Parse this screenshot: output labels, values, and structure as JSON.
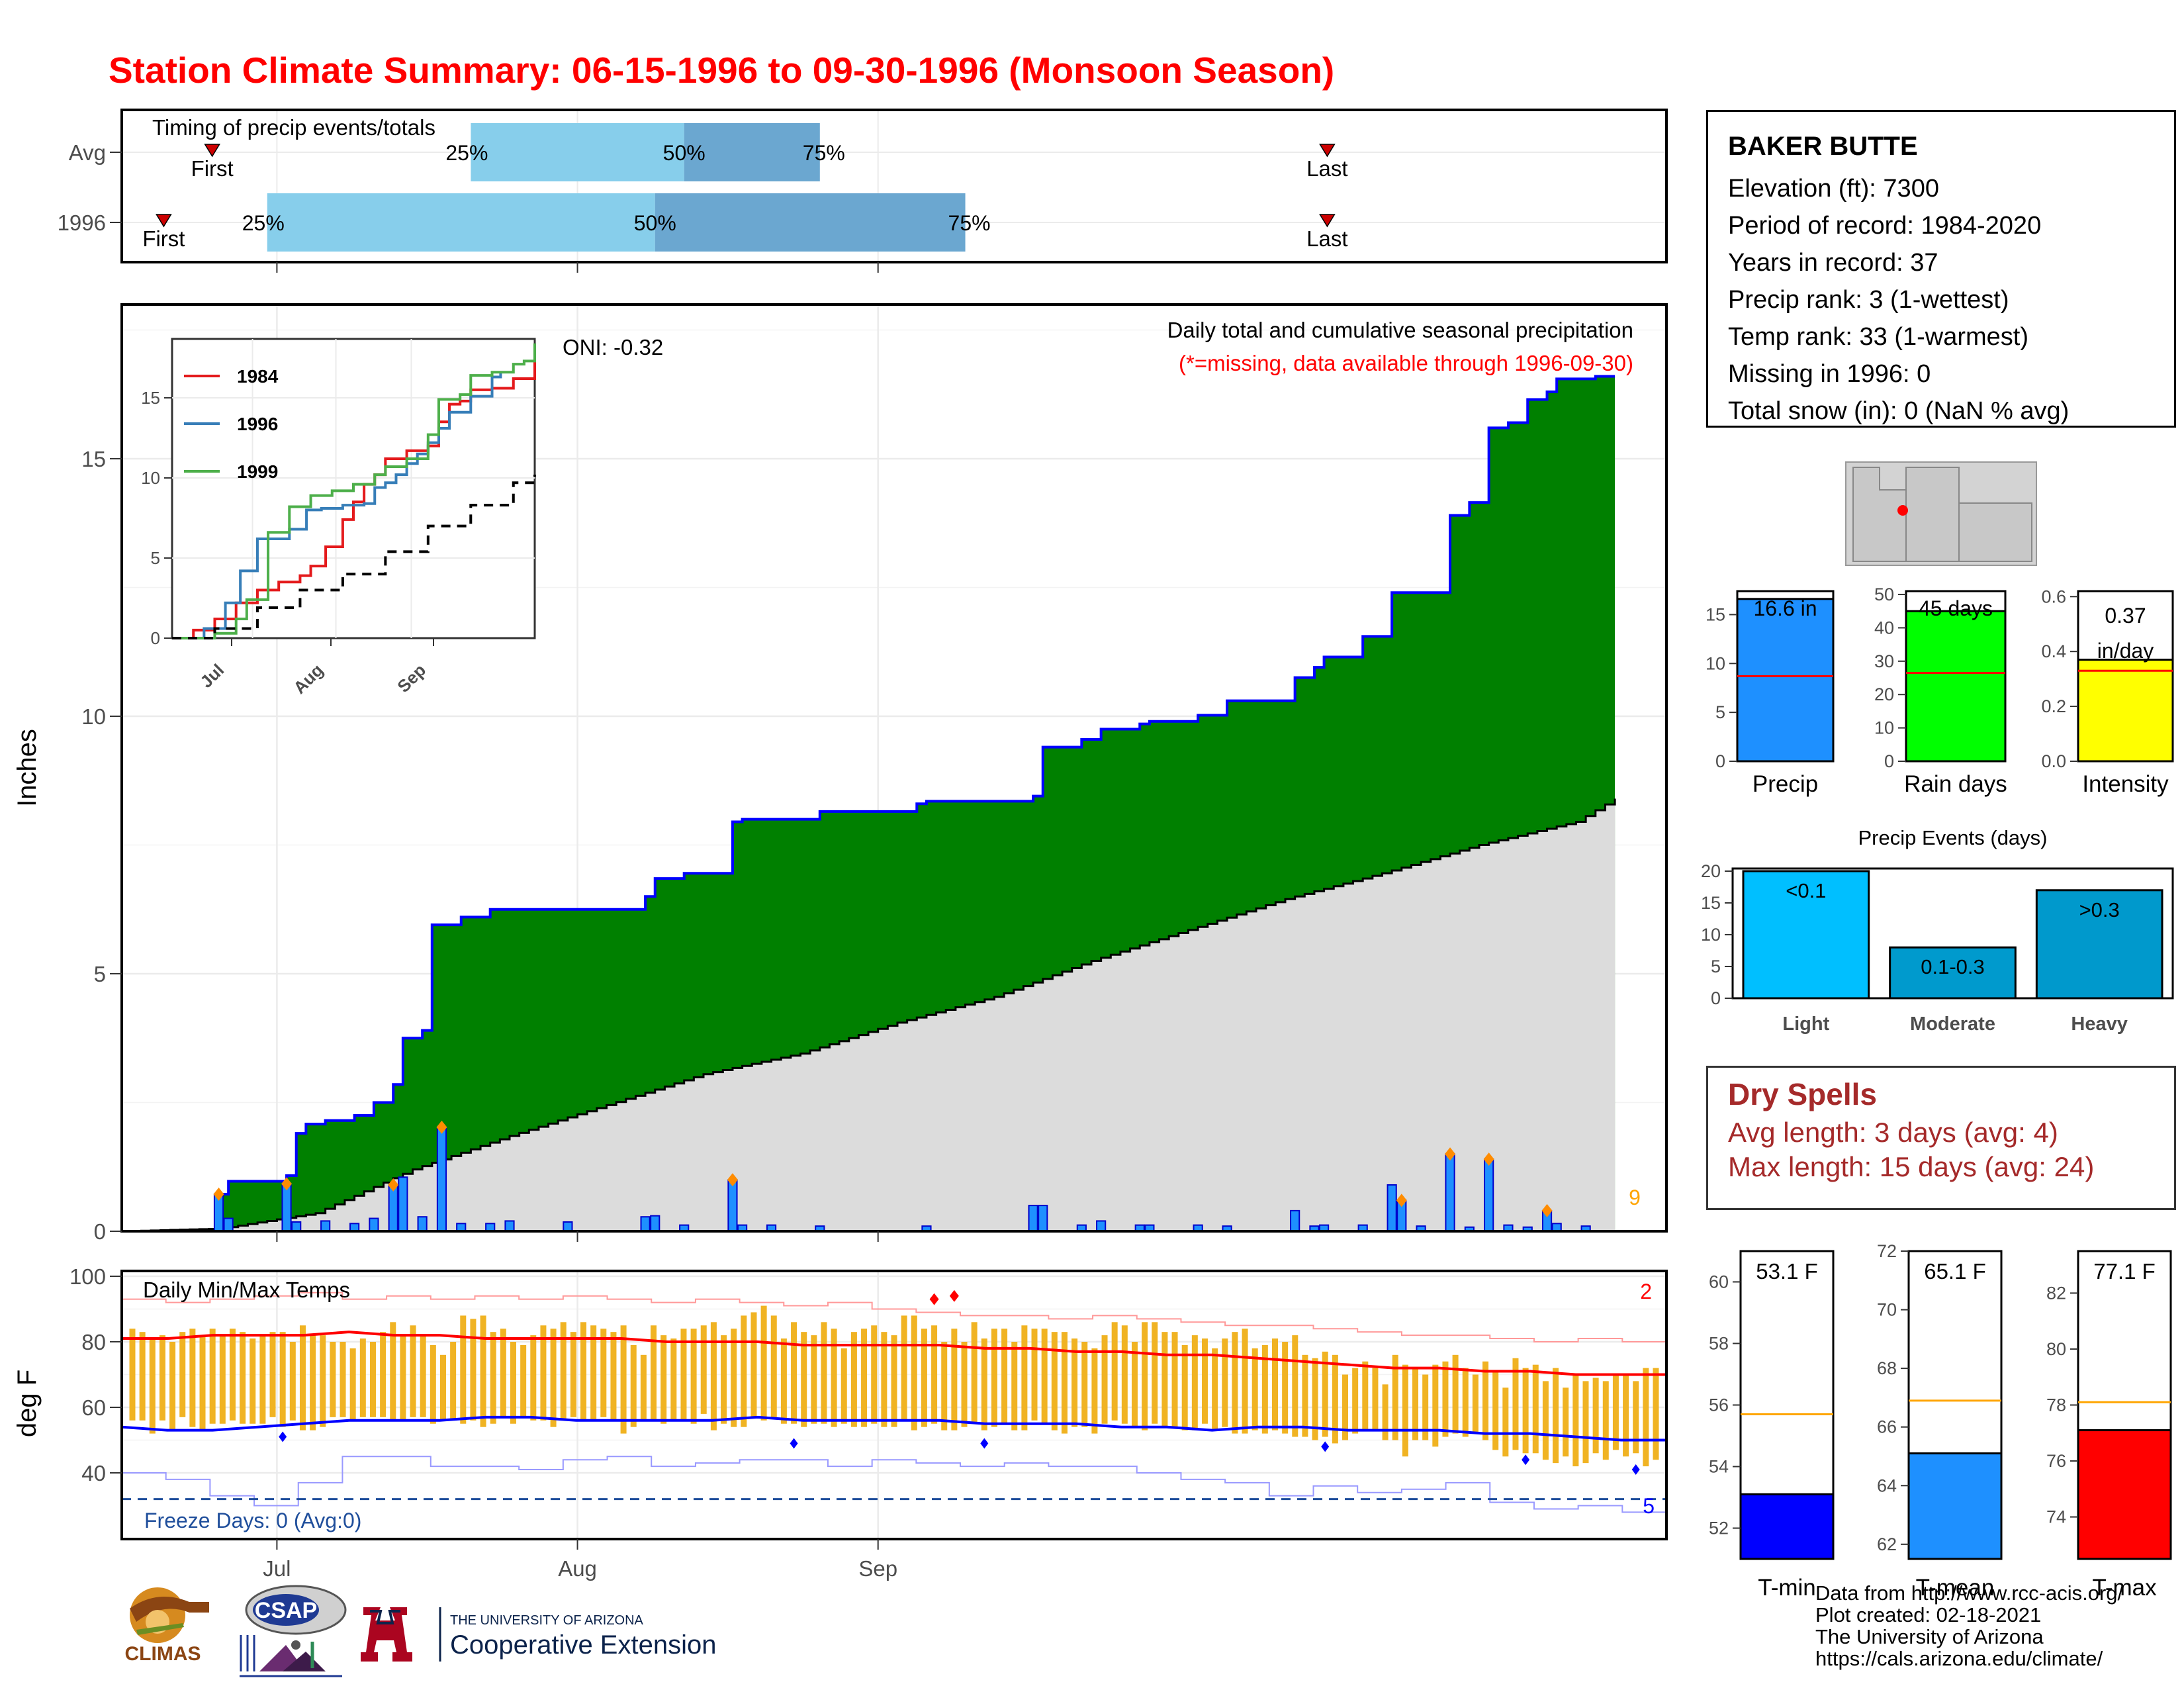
{
  "title": "Station Climate Summary: 06-15-1996 to 09-30-1996 (Monsoon Season)",
  "timing_panel": {
    "label": "Timing of precip events/totals",
    "rows": [
      {
        "label": "Avg",
        "first_day": 1,
        "q25_day": 36,
        "q50_day": 58,
        "q75_day": 72,
        "last_day": 116,
        "pct_labels": [
          "25%",
          "50%",
          "75%"
        ],
        "first_label": "First",
        "last_label": "Last"
      },
      {
        "label": "1996",
        "first_day": -4,
        "q25_day": 15,
        "q50_day": 55,
        "q75_day": 87,
        "last_day": 116,
        "pct_labels": [
          "25%",
          "50%",
          "75%"
        ],
        "first_label": "First",
        "last_label": "Last"
      }
    ]
  },
  "precip_panel": {
    "ylabel": "Inches",
    "oni": "ONI: -0.32",
    "subtitle": "Daily total and cumulative seasonal precipitation",
    "missing_note": "(*=missing, data available through 1996-09-30)",
    "missing_count": "9",
    "x_ticks": [
      "Jul",
      "Aug",
      "Sep"
    ],
    "y_ticks": [
      "0",
      "5",
      "10",
      "15"
    ],
    "colors": {
      "cumulative_fill": "#008000",
      "cumulative_line": "#0000ff",
      "normal_fill": "#dcdcdc",
      "daily_bar": "#1e90ff",
      "marker": "#ff8c00"
    }
  },
  "inset": {
    "series": [
      {
        "name": "1984",
        "color": "#e41a1c"
      },
      {
        "name": "1996",
        "color": "#377eb8"
      },
      {
        "name": "1999",
        "color": "#4daf4a"
      }
    ],
    "x_ticks": [
      "Jul",
      "Aug",
      "Sep"
    ],
    "y_ticks": [
      "0",
      "5",
      "10",
      "15"
    ]
  },
  "temp_panel": {
    "ylabel": "deg F",
    "label": "Daily Min/Max Temps",
    "freeze": "Freeze Days: 0 (Avg:0)",
    "record_high_count": "2",
    "record_low_count": "5",
    "y_ticks": [
      "40",
      "60",
      "80",
      "100"
    ],
    "x_ticks": [
      "Jul",
      "Aug",
      "Sep"
    ]
  },
  "station": {
    "name": "BAKER BUTTE",
    "lines": [
      "Elevation (ft): 7300",
      "Period of record: 1984-2020",
      "Years in record: 37",
      "Precip rank: 3 (1-wettest)",
      "Temp rank: 33 (1-warmest)",
      "Missing in 1996: 0",
      "Total snow (in): 0 (NaN % avg)"
    ]
  },
  "summary_bars": [
    {
      "label": "Precip",
      "value": 16.6,
      "value_label": "16.6 in",
      "avg": 8.7,
      "max": 17.4,
      "color": "#1e90ff",
      "ticks": [
        "0",
        "5",
        "10",
        "15"
      ]
    },
    {
      "label": "Rain days",
      "value": 45,
      "value_label": "45 days",
      "avg": 26.5,
      "max": 51,
      "color": "#00ff00",
      "ticks": [
        "0",
        "10",
        "20",
        "30",
        "40",
        "50"
      ]
    },
    {
      "label": "Intensity",
      "value": 0.37,
      "value_label": "0.37 in/day",
      "value_label_a": "0.37",
      "value_label_b": "in/day",
      "avg": 0.33,
      "max": 0.62,
      "color": "#ffff00",
      "ticks": [
        "0.0",
        "0.2",
        "0.4",
        "0.6"
      ]
    }
  ],
  "precip_events": {
    "title": "Precip Events (days)",
    "categories": [
      "Light",
      "Moderate",
      "Heavy"
    ],
    "values": [
      20,
      8,
      17
    ],
    "labels": [
      "<0.1",
      "0.1-0.3",
      ">0.3"
    ],
    "colors": [
      "#00bfff",
      "#009acd",
      "#0099cc"
    ],
    "ticks": [
      "0",
      "5",
      "10",
      "15",
      "20"
    ]
  },
  "dry_spells": {
    "title": "Dry Spells",
    "avg_length": "Avg length: 3 days (avg: 4)",
    "max_length": "Max length: 15 days (avg: 24)"
  },
  "temp_bars": [
    {
      "label": "T-min",
      "value": 53.1,
      "value_label": "53.1 F",
      "avg": 55.7,
      "ymin": 51,
      "ymax": 61,
      "color": "#0000ff",
      "ticks": [
        "52",
        "54",
        "56",
        "58",
        "60"
      ]
    },
    {
      "label": "T-mean",
      "value": 65.1,
      "value_label": "65.1 F",
      "avg": 66.9,
      "ymin": 61.5,
      "ymax": 72,
      "color": "#1e90ff",
      "ticks": [
        "62",
        "64",
        "66",
        "68",
        "70",
        "72"
      ]
    },
    {
      "label": "T-max",
      "value": 77.1,
      "value_label": "77.1 F",
      "avg": 78.1,
      "ymin": 72.5,
      "ymax": 83.5,
      "color": "#ff0000",
      "ticks": [
        "74",
        "76",
        "78",
        "80",
        "82"
      ]
    }
  ],
  "credits": [
    "Data from http://www.rcc-acis.org/",
    "Plot created: 02-18-2021",
    "The University of Arizona",
    "https://cals.arizona.edu/climate/"
  ],
  "logos": {
    "climas": "CLIMAS",
    "csap": "CSAP",
    "ua_small": "THE UNIVERSITY OF ARIZONA",
    "ua_big": "Cooperative Extension"
  },
  "chart_data": [
    {
      "type": "area",
      "title": "Daily total and cumulative seasonal precipitation",
      "ylabel": "Inches",
      "xlabel": "",
      "ylim": [
        0,
        18
      ],
      "x_start": "1996-06-15",
      "x_end": "1996-09-30",
      "daily_precip": [
        [
          10,
          0.72
        ],
        [
          11,
          0.25
        ],
        [
          17,
          0.92
        ],
        [
          18,
          0.18
        ],
        [
          21,
          0.2
        ],
        [
          24,
          0.15
        ],
        [
          26,
          0.25
        ],
        [
          28,
          0.9
        ],
        [
          29,
          1.05
        ],
        [
          31,
          0.28
        ],
        [
          33,
          2.02
        ],
        [
          35,
          0.15
        ],
        [
          38,
          0.15
        ],
        [
          40,
          0.2
        ],
        [
          46,
          0.18
        ],
        [
          54,
          0.28
        ],
        [
          55,
          0.3
        ],
        [
          58,
          0.12
        ],
        [
          63,
          1.0
        ],
        [
          64,
          0.12
        ],
        [
          67,
          0.12
        ],
        [
          72,
          0.1
        ],
        [
          83,
          0.1
        ],
        [
          94,
          0.5
        ],
        [
          95,
          0.5
        ],
        [
          99,
          0.12
        ],
        [
          101,
          0.2
        ],
        [
          105,
          0.12
        ],
        [
          106,
          0.12
        ],
        [
          111,
          0.12
        ],
        [
          114,
          0.1
        ],
        [
          121,
          0.4
        ],
        [
          123,
          0.1
        ],
        [
          124,
          0.12
        ],
        [
          128,
          0.12
        ],
        [
          131,
          0.9
        ],
        [
          132,
          0.6
        ],
        [
          134,
          0.1
        ],
        [
          137,
          1.5
        ],
        [
          139,
          0.08
        ],
        [
          141,
          1.4
        ],
        [
          143,
          0.12
        ],
        [
          145,
          0.08
        ],
        [
          147,
          0.4
        ],
        [
          148,
          0.15
        ],
        [
          151,
          0.1
        ]
      ],
      "cumulative_precip": [
        [
          0,
          0
        ],
        [
          9,
          0
        ],
        [
          10,
          0.72
        ],
        [
          11,
          0.97
        ],
        [
          17,
          1.08
        ],
        [
          18,
          1.9
        ],
        [
          19,
          2.08
        ],
        [
          21,
          2.15
        ],
        [
          24,
          2.25
        ],
        [
          26,
          2.5
        ],
        [
          28,
          2.85
        ],
        [
          29,
          3.75
        ],
        [
          31,
          3.9
        ],
        [
          32,
          5.95
        ],
        [
          35,
          6.1
        ],
        [
          38,
          6.25
        ],
        [
          54,
          6.5
        ],
        [
          55,
          6.85
        ],
        [
          58,
          6.95
        ],
        [
          63,
          7.95
        ],
        [
          64,
          8.0
        ],
        [
          72,
          8.15
        ],
        [
          82,
          8.3
        ],
        [
          83,
          8.35
        ],
        [
          94,
          8.45
        ],
        [
          95,
          9.4
        ],
        [
          99,
          9.55
        ],
        [
          101,
          9.75
        ],
        [
          105,
          9.85
        ],
        [
          106,
          9.9
        ],
        [
          111,
          10.02
        ],
        [
          114,
          10.3
        ],
        [
          121,
          10.75
        ],
        [
          123,
          10.95
        ],
        [
          124,
          11.15
        ],
        [
          128,
          11.55
        ],
        [
          131,
          12.4
        ],
        [
          137,
          13.9
        ],
        [
          139,
          14.15
        ],
        [
          141,
          15.6
        ],
        [
          143,
          15.7
        ],
        [
          145,
          16.15
        ],
        [
          147,
          16.3
        ],
        [
          148,
          16.55
        ],
        [
          152,
          16.6
        ],
        [
          154,
          16.6
        ]
      ],
      "normal_cumulative": [
        [
          0,
          0
        ],
        [
          10,
          0.05
        ],
        [
          20,
          0.35
        ],
        [
          30,
          1.2
        ],
        [
          40,
          1.85
        ],
        [
          50,
          2.45
        ],
        [
          60,
          3.05
        ],
        [
          70,
          3.45
        ],
        [
          80,
          4.05
        ],
        [
          90,
          4.55
        ],
        [
          100,
          5.25
        ],
        [
          110,
          5.85
        ],
        [
          120,
          6.45
        ],
        [
          130,
          6.95
        ],
        [
          140,
          7.5
        ],
        [
          150,
          7.95
        ],
        [
          154,
          8.4
        ]
      ],
      "max_record_marks": [
        10,
        17,
        28,
        33,
        63,
        137,
        141,
        147,
        132
      ]
    },
    {
      "type": "line",
      "title": "",
      "ylim": [
        0,
        17.5
      ],
      "x_start": "1996-06-15",
      "x_end": "1996-09-30",
      "series": [
        {
          "name": "1984",
          "x": [
            0,
            10,
            20,
            30,
            40,
            50,
            60,
            65,
            72,
            80,
            85,
            90,
            95,
            100,
            110,
            120,
            125,
            130,
            135,
            140,
            150,
            160,
            170
          ],
          "y": [
            0,
            0.5,
            1.2,
            2.2,
            3.0,
            3.5,
            3.9,
            4.5,
            5.7,
            7.4,
            8.5,
            9.6,
            10.2,
            11.2,
            11.7,
            12.0,
            13.5,
            14.6,
            14.8,
            15.5,
            15.6,
            16.2,
            17.3
          ]
        },
        {
          "name": "1996",
          "x": [
            0,
            15,
            25,
            32,
            40,
            55,
            63,
            70,
            80,
            90,
            95,
            100,
            105,
            110,
            115,
            120,
            125,
            130,
            140,
            150,
            154
          ],
          "y": [
            0,
            0.6,
            2.2,
            4.2,
            6.2,
            6.8,
            8.0,
            8.1,
            8.3,
            8.4,
            9.4,
            9.7,
            10.2,
            10.9,
            11.5,
            12.2,
            13.1,
            14.1,
            15.1,
            16.3,
            16.6
          ]
        },
        {
          "name": "1999",
          "x": [
            0,
            20,
            30,
            35,
            45,
            55,
            65,
            75,
            85,
            95,
            100,
            110,
            120,
            125,
            135,
            140,
            150,
            160,
            165,
            170
          ],
          "y": [
            0,
            0.3,
            1.2,
            2.4,
            6.6,
            8.2,
            8.9,
            9.2,
            9.6,
            10.2,
            10.7,
            11.2,
            12.7,
            14.9,
            15.2,
            16.4,
            16.6,
            17.1,
            17.3,
            18.4
          ]
        },
        {
          "name": "",
          "dashed": true,
          "x": [
            0,
            20,
            40,
            60,
            80,
            100,
            120,
            140,
            160,
            170
          ],
          "y": [
            0,
            0.6,
            1.9,
            3.0,
            4.0,
            5.4,
            7.0,
            8.3,
            9.7,
            10.2
          ]
        }
      ]
    },
    {
      "type": "bar",
      "title": "Daily Min/Max Temps",
      "ylabel": "deg F",
      "ylim": [
        25,
        102
      ],
      "x_start": "1996-06-15",
      "x_end": "1996-09-30",
      "tmax": [
        84,
        83,
        81,
        82,
        80,
        83,
        84,
        82,
        84,
        82,
        84,
        83,
        81,
        82,
        83,
        83,
        80,
        85,
        82,
        82,
        80,
        80,
        78,
        81,
        80,
        83,
        86,
        82,
        85,
        82,
        79,
        76,
        80,
        88,
        87,
        88,
        83,
        84,
        80,
        79,
        82,
        85,
        84,
        86,
        83,
        86,
        85,
        84,
        83,
        85,
        79,
        76,
        85,
        82,
        81,
        84,
        84,
        85,
        86,
        82,
        84,
        88,
        89,
        91,
        88,
        81,
        86,
        83,
        82,
        86,
        84,
        78,
        83,
        84,
        85,
        83,
        82,
        88,
        88,
        84,
        85,
        80,
        84,
        80,
        86,
        81,
        84,
        84,
        80,
        85,
        84,
        84,
        83,
        83,
        81,
        80,
        78,
        82,
        86,
        85,
        80,
        86,
        86,
        83,
        83,
        79,
        82,
        81,
        78,
        81,
        83,
        84,
        78,
        79,
        81,
        80,
        82,
        76,
        75,
        77,
        76,
        70,
        72,
        74,
        72,
        67,
        76,
        73,
        72,
        70,
        73,
        74,
        76,
        72,
        70,
        74,
        71,
        66,
        75,
        72,
        73,
        68,
        72,
        66,
        70,
        68,
        69,
        68,
        70,
        70,
        68,
        72,
        72
      ],
      "tmin": [
        56,
        56,
        52,
        56,
        53,
        57,
        54,
        53,
        55,
        55,
        56,
        55,
        55,
        55,
        57,
        54,
        56,
        53,
        53,
        54,
        57,
        57,
        56,
        57,
        57,
        57,
        56,
        56,
        57,
        57,
        55,
        56,
        56,
        55,
        56,
        54,
        55,
        57,
        55,
        57,
        56,
        56,
        54,
        56,
        57,
        56,
        56,
        57,
        56,
        52,
        54,
        56,
        56,
        55,
        56,
        56,
        55,
        58,
        53,
        55,
        54,
        54,
        57,
        56,
        57,
        55,
        55,
        54,
        55,
        55,
        54,
        55,
        54,
        54,
        55,
        54,
        54,
        56,
        53,
        54,
        55,
        53,
        53,
        54,
        55,
        53,
        54,
        55,
        53,
        53,
        56,
        55,
        53,
        52,
        54,
        54,
        52,
        55,
        56,
        55,
        54,
        53,
        55,
        54,
        54,
        53,
        53,
        55,
        53,
        54,
        52,
        52,
        53,
        52,
        53,
        52,
        51,
        51,
        50,
        51,
        49,
        50,
        52,
        53,
        53,
        50,
        50,
        45,
        50,
        50,
        48,
        51,
        52,
        51,
        52,
        50,
        47,
        45,
        47,
        46,
        46,
        44,
        43,
        45,
        42,
        43,
        46,
        44,
        47,
        45,
        46,
        42,
        44
      ],
      "avg_max": [
        81,
        81,
        82,
        82,
        82,
        83,
        82,
        82,
        81,
        81,
        81,
        81,
        80,
        80,
        80,
        79,
        79,
        79,
        79,
        78,
        78,
        77,
        77,
        76,
        76,
        75,
        74,
        73,
        72,
        72,
        71,
        71,
        70,
        70,
        70
      ],
      "avg_min": [
        54,
        53,
        53,
        54,
        55,
        56,
        56,
        56,
        57,
        57,
        56,
        56,
        56,
        56,
        57,
        56,
        56,
        56,
        56,
        55,
        55,
        55,
        54,
        54,
        53,
        54,
        54,
        53,
        53,
        53,
        52,
        52,
        51,
        50,
        50
      ],
      "record_high": [
        93,
        92,
        93,
        94,
        95,
        93,
        94,
        93,
        94,
        93,
        94,
        93,
        92,
        93,
        92,
        91,
        92,
        90,
        89,
        88,
        88,
        87,
        88,
        87,
        86,
        85,
        85,
        84,
        83,
        82,
        82,
        81,
        80,
        81,
        80
      ],
      "record_low": [
        40,
        38,
        33,
        30,
        37,
        45,
        45,
        42,
        42,
        41,
        44,
        45,
        42,
        43,
        44,
        44,
        42,
        44,
        43,
        42,
        43,
        42,
        42,
        40,
        38,
        37,
        33,
        36,
        34,
        35,
        37,
        31,
        29,
        30,
        28
      ],
      "freeze_line": 32
    }
  ]
}
